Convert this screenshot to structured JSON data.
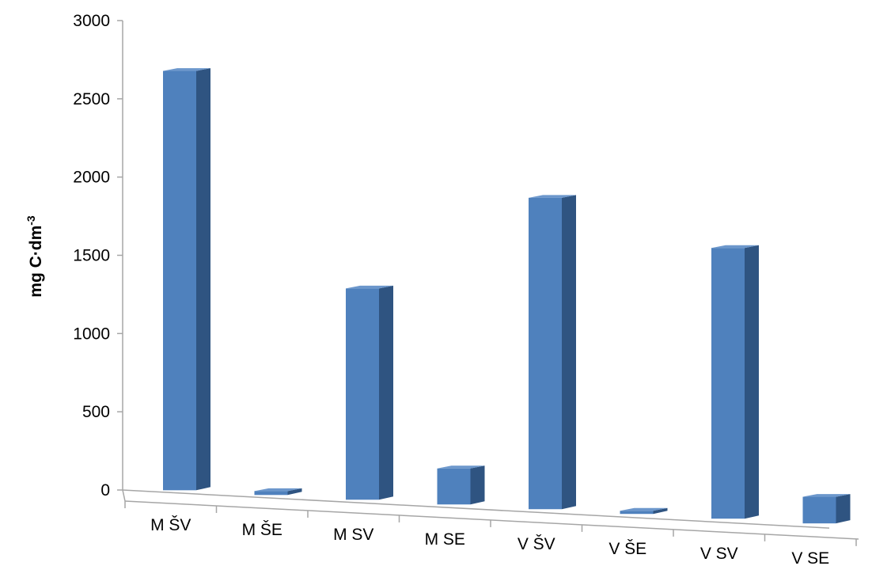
{
  "chart_data": {
    "type": "bar",
    "style": "3d-column",
    "categories": [
      "M ŠV",
      "M ŠE",
      "M SV",
      "M SE",
      "V ŠV",
      "V ŠE",
      "V SV",
      "V SE"
    ],
    "values": [
      2680,
      25,
      1350,
      230,
      1990,
      20,
      1730,
      170
    ],
    "ylabel": "mg C·dm",
    "ylabel_superscript": "-3",
    "ylim": [
      0,
      3000
    ],
    "yticks": [
      "0",
      "500",
      "1000",
      "1500",
      "2000",
      "2500",
      "3000"
    ],
    "grid": false,
    "legend": "none",
    "colors": {
      "front": "#4f81bd",
      "side": "#2f5481",
      "top": "#6c97cc",
      "axis": "#a6a6a6",
      "text": "#000000"
    }
  }
}
